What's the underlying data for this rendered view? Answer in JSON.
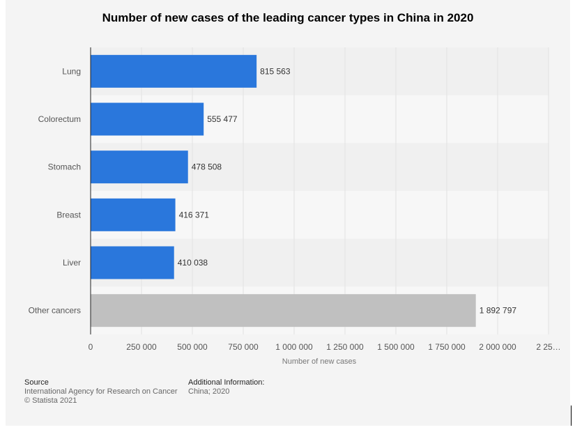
{
  "chart_data": {
    "type": "bar",
    "orientation": "horizontal",
    "title": "Number of new cases of the leading cancer types in China in 2020",
    "xlabel": "Number of new cases",
    "ylabel": "",
    "categories": [
      "Lung",
      "Colorectum",
      "Stomach",
      "Breast",
      "Liver",
      "Other cancers"
    ],
    "values": [
      815563,
      555477,
      478508,
      416371,
      410038,
      1892797
    ],
    "value_labels": [
      "815 563",
      "555 477",
      "478 508",
      "416 371",
      "410 038",
      "1 892 797"
    ],
    "bar_colors": [
      "#2a77dc",
      "#2a77dc",
      "#2a77dc",
      "#2a77dc",
      "#2a77dc",
      "#c0c0c0"
    ],
    "xlim": [
      0,
      2250000
    ],
    "xticks": [
      0,
      250000,
      500000,
      750000,
      1000000,
      1250000,
      1500000,
      1750000,
      2000000,
      2250000
    ],
    "xtick_labels": [
      "0",
      "250 000",
      "500 000",
      "750 000",
      "1 000 000",
      "1 250 000",
      "1 500 000",
      "1 750 000",
      "2 000 000",
      "2 25…"
    ],
    "grid": true,
    "legend": "none"
  },
  "footer": {
    "source_heading": "Source",
    "source_lines": [
      "International Agency for Research on Cancer",
      "© Statista 2021"
    ],
    "info_heading": "Additional Information:",
    "info_lines": [
      "China; 2020"
    ]
  }
}
